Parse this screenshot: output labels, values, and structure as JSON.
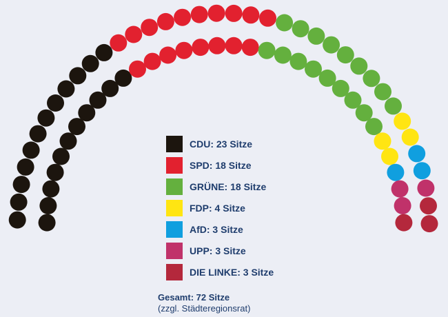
{
  "chart_data": {
    "type": "parliament",
    "parties": [
      {
        "name": "CDU",
        "label": "CDU: 23 Sitze",
        "seats": 23,
        "color": "#1c150e"
      },
      {
        "name": "SPD",
        "label": "SPD: 18 Sitze",
        "seats": 18,
        "color": "#e2212f"
      },
      {
        "name": "GRÜNE",
        "label": "GRÜNE: 18 Sitze",
        "seats": 18,
        "color": "#64b03e"
      },
      {
        "name": "FDP",
        "label": "FDP: 4 Sitze",
        "seats": 4,
        "color": "#ffe512"
      },
      {
        "name": "AfD",
        "label": "AfD: 3 Sitze",
        "seats": 3,
        "color": "#109fdf"
      },
      {
        "name": "UPP",
        "label": "UPP: 3 Sitze",
        "seats": 3,
        "color": "#c0326a"
      },
      {
        "name": "DIE LINKE",
        "label": "DIE LINKE: 3 Sitze",
        "seats": 3,
        "color": "#b4283c"
      }
    ],
    "total_label": "Gesamt: 72 Sitze",
    "total_note": "(zzgl. Städteregionsrat)"
  }
}
